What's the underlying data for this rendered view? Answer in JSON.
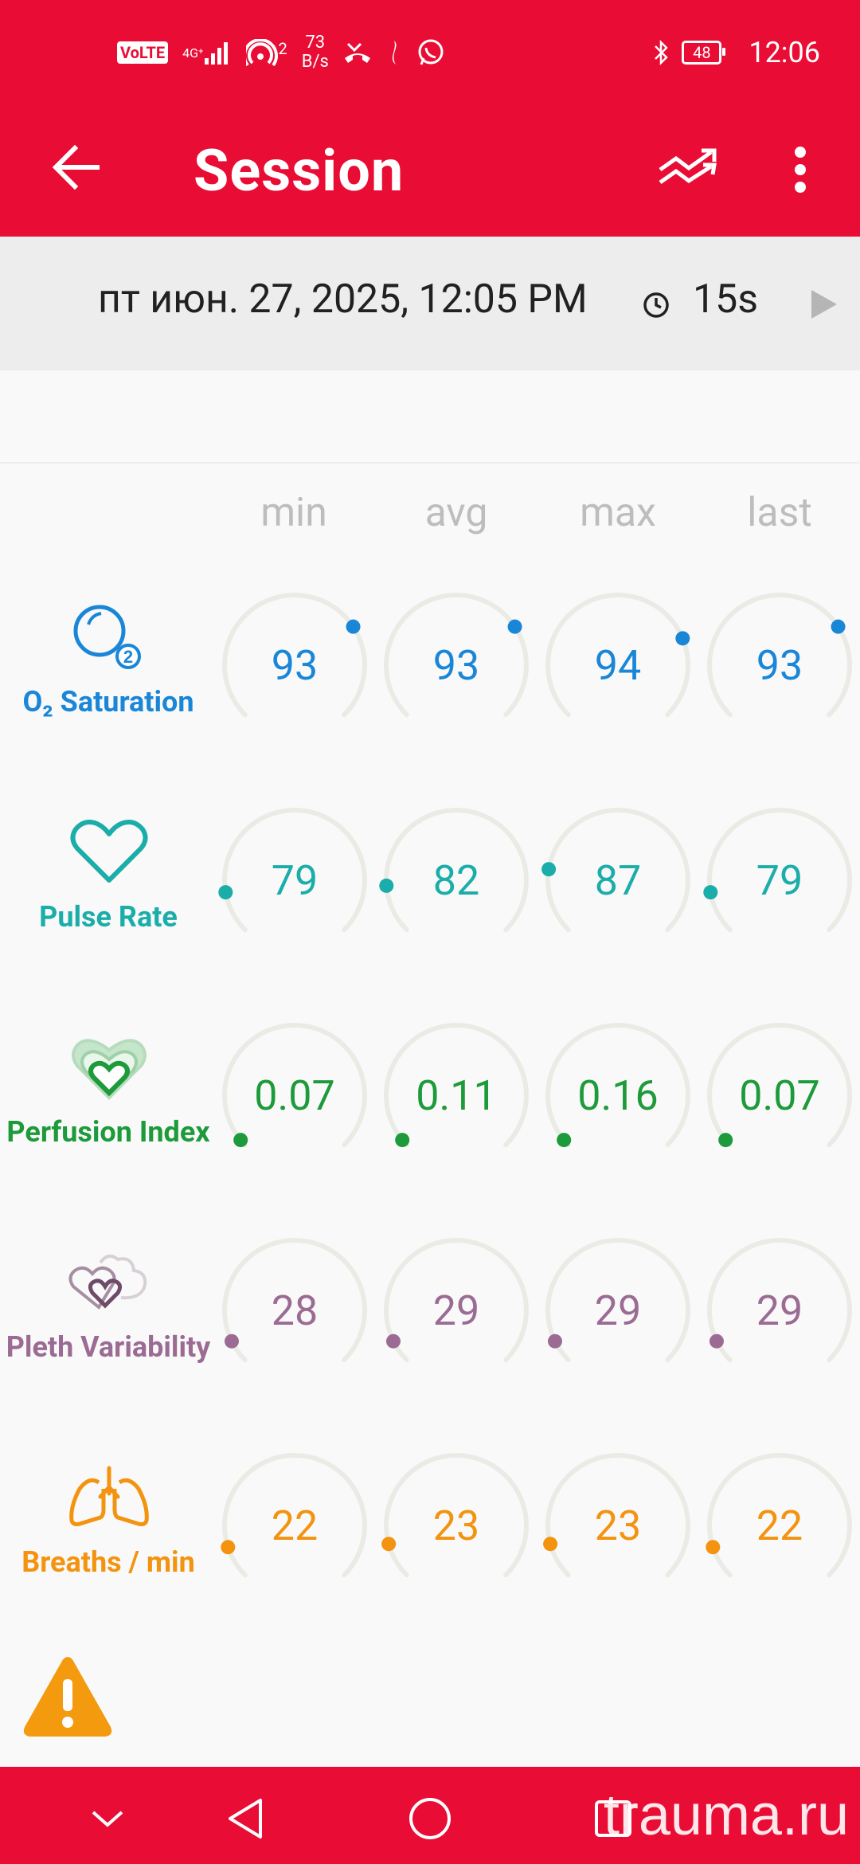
{
  "status_bar": {
    "volte": "VoLTE",
    "network": "4G⁺",
    "hotspot_count": "2",
    "speed_value": "73",
    "speed_unit": "B/s",
    "battery": "48",
    "time": "12:06"
  },
  "app_bar": {
    "title": "Session",
    "back_icon": "arrow-back-icon",
    "trend_icon": "trend-compare-icon",
    "menu_icon": "more-vert-icon"
  },
  "session": {
    "date": "пт июн. 27, 2025, 12:05 PM",
    "duration": "15s"
  },
  "columns": [
    "min",
    "avg",
    "max",
    "last"
  ],
  "parameters": [
    {
      "label": "O₂ Saturation",
      "icon": "o2-saturation-icon",
      "color": "#1a86d8",
      "values": [
        "93",
        "93",
        "94",
        "93"
      ],
      "levels": [
        0.71,
        0.71,
        0.75,
        0.71
      ]
    },
    {
      "label": "Pulse Rate",
      "icon": "heart-icon",
      "color": "#1bada9",
      "values": [
        "79",
        "82",
        "87",
        "79"
      ],
      "levels": [
        0.13,
        0.15,
        0.2,
        0.13
      ]
    },
    {
      "label": "Perfusion Index",
      "icon": "perfusion-hearts-icon",
      "color": "#1d9a3a",
      "values": [
        "0.07",
        "0.11",
        "0.16",
        "0.07"
      ],
      "levels": [
        0.02,
        0.02,
        0.02,
        0.02
      ]
    },
    {
      "label": "Pleth Variability",
      "icon": "pleth-hearts-icon",
      "color": "#9b6b94",
      "values": [
        "28",
        "29",
        "29",
        "29"
      ],
      "levels": [
        0.07,
        0.07,
        0.07,
        0.07
      ]
    },
    {
      "label": "Breaths / min",
      "icon": "lungs-icon",
      "color": "#f3930f",
      "values": [
        "22",
        "23",
        "23",
        "22"
      ],
      "levels": [
        0.1,
        0.11,
        0.11,
        0.1
      ]
    }
  ],
  "warning_icon": "warning-icon",
  "nav": {
    "items": [
      "collapse-icon",
      "back-triangle-icon",
      "home-circle-icon",
      "recents-square-icon"
    ],
    "watermark": "trauma.ru"
  }
}
